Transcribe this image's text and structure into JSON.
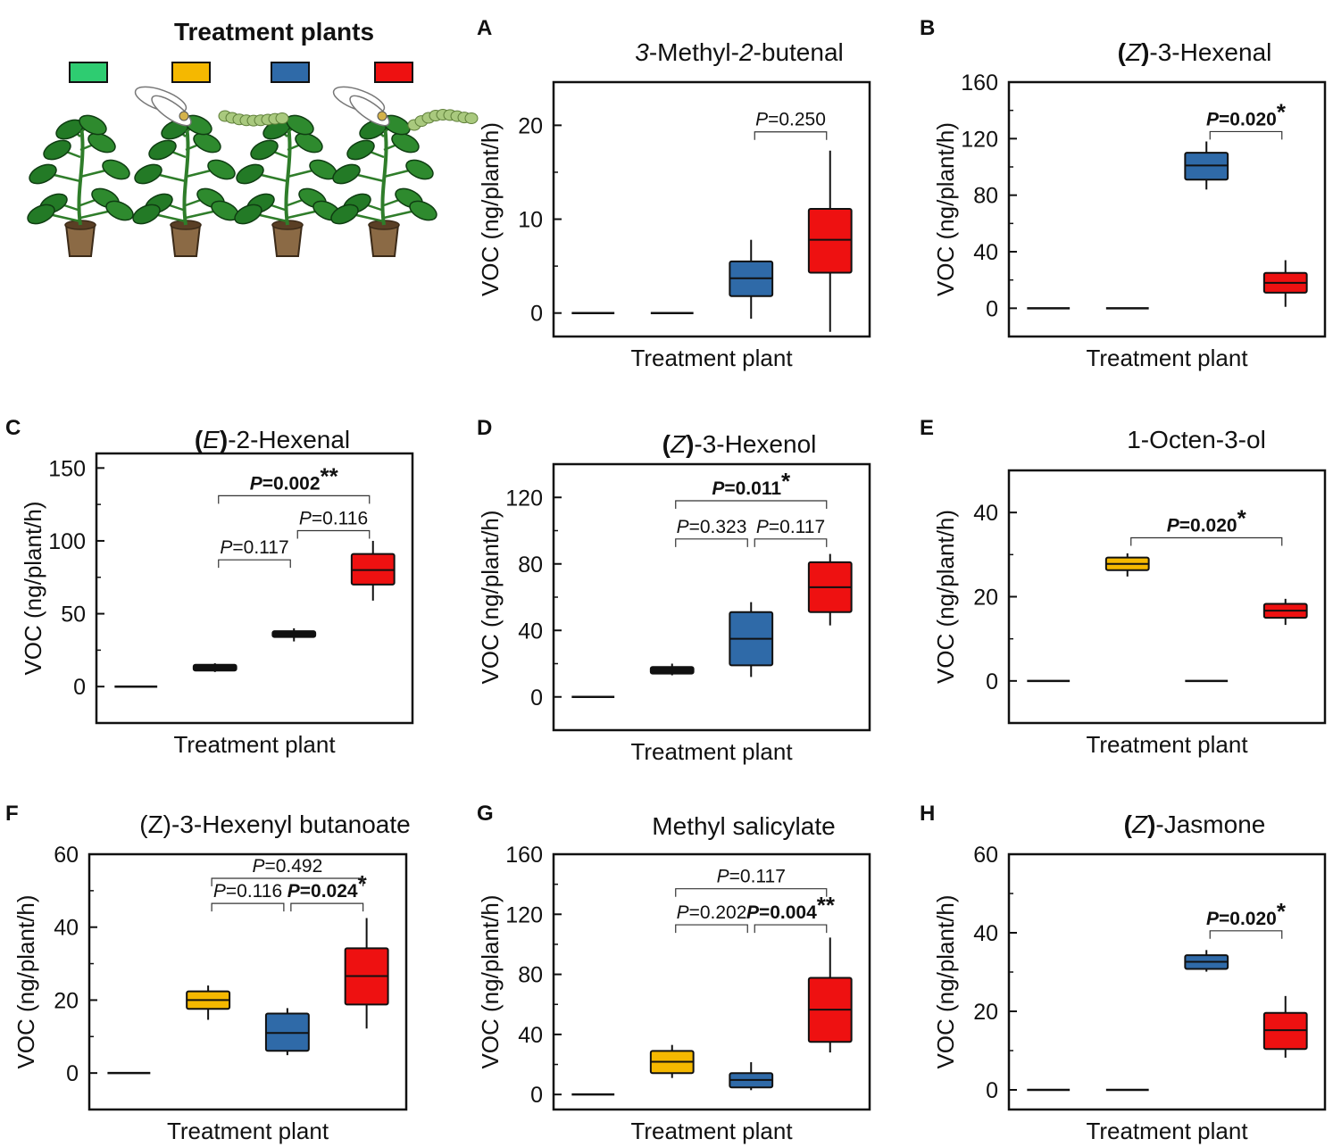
{
  "legend": {
    "title": "Treatment plants",
    "swatches": [
      {
        "color": "#2ecc71"
      },
      {
        "color": "#f5b800"
      },
      {
        "color": "#2f6aa8"
      },
      {
        "color": "#ee1111"
      }
    ]
  },
  "chart_data": [
    {
      "type": "box",
      "panel": "A",
      "title_parts": [
        {
          "t": "3",
          "i": true
        },
        {
          "t": "-Methyl-",
          "i": false
        },
        {
          "t": "2",
          "i": true
        },
        {
          "t": "-butenal",
          "i": false
        }
      ],
      "xlabel": "Treatment plant",
      "ylabel": "VOC (ng/plant/h)",
      "ylim": [
        -2.5,
        24.6
      ],
      "yticks": [
        0,
        10,
        20
      ],
      "minor_step": 5,
      "boxes": [
        {
          "group": 1,
          "flat": true,
          "median": 0
        },
        {
          "group": 2,
          "flat": true,
          "median": 0
        },
        {
          "group": 3,
          "color": "#2f6aa8",
          "q1": 1.8,
          "median": 3.7,
          "q3": 5.5,
          "lo": -0.6,
          "hi": 7.8
        },
        {
          "group": 4,
          "color": "#ee1111",
          "q1": 4.3,
          "median": 7.8,
          "q3": 11.1,
          "lo": -2.0,
          "hi": 17.3
        }
      ],
      "brackets": [
        {
          "from": 3,
          "to": 4,
          "y": 19.3,
          "label": "=0.250",
          "bold": false,
          "stars": ""
        }
      ]
    },
    {
      "type": "box",
      "panel": "B",
      "title_parts": [
        {
          "t": "(",
          "i": false,
          "b": true
        },
        {
          "t": "Z",
          "i": true
        },
        {
          "t": ")",
          "i": false,
          "b": true
        },
        {
          "t": "-3-Hexenal",
          "i": false
        }
      ],
      "xlabel": "Treatment plant",
      "ylabel": "VOC (ng/plant/h)",
      "ylim": [
        -20,
        160
      ],
      "yticks": [
        0,
        40,
        80,
        120,
        160
      ],
      "minor_step": 20,
      "boxes": [
        {
          "group": 1,
          "flat": true,
          "median": 0
        },
        {
          "group": 2,
          "flat": true,
          "median": 0
        },
        {
          "group": 3,
          "color": "#2f6aa8",
          "q1": 91,
          "median": 101,
          "q3": 110,
          "lo": 84,
          "hi": 118
        },
        {
          "group": 4,
          "color": "#ee1111",
          "q1": 11,
          "median": 18,
          "q3": 25,
          "lo": 1,
          "hi": 34
        }
      ],
      "brackets": [
        {
          "from": 3,
          "to": 4,
          "y": 125,
          "label": "=0.020",
          "bold": true,
          "stars": "*"
        }
      ]
    },
    {
      "type": "box",
      "panel": "C",
      "title_parts": [
        {
          "t": "(",
          "i": false,
          "b": true
        },
        {
          "t": "E",
          "i": true
        },
        {
          "t": ")",
          "i": false,
          "b": true
        },
        {
          "t": "-2-Hexenal",
          "i": false
        }
      ],
      "xlabel": "Treatment plant",
      "ylabel": "VOC (ng/plant/h)",
      "ylim": [
        -25,
        160
      ],
      "yticks": [
        0,
        50,
        100,
        150
      ],
      "minor_step": 25,
      "boxes": [
        {
          "group": 1,
          "flat": true,
          "median": 0
        },
        {
          "group": 2,
          "color": "#111111",
          "q1": 11,
          "median": 13,
          "q3": 15,
          "lo": 10,
          "hi": 16
        },
        {
          "group": 3,
          "color": "#111111",
          "q1": 34,
          "median": 36,
          "q3": 38,
          "lo": 31,
          "hi": 40
        },
        {
          "group": 4,
          "color": "#ee1111",
          "q1": 70,
          "median": 80,
          "q3": 91,
          "lo": 59,
          "hi": 100
        }
      ],
      "brackets": [
        {
          "from": 2,
          "to": 3,
          "y": 87,
          "label": "=0.117",
          "bold": false,
          "stars": ""
        },
        {
          "from": 3,
          "to": 4,
          "y": 107,
          "label": "=0.116",
          "bold": false,
          "stars": ""
        },
        {
          "from": 2,
          "to": 4,
          "y": 131,
          "label": "=0.002",
          "bold": true,
          "stars": "**"
        }
      ]
    },
    {
      "type": "box",
      "panel": "D",
      "title_parts": [
        {
          "t": "(",
          "i": false,
          "b": true
        },
        {
          "t": "Z",
          "i": true
        },
        {
          "t": ")",
          "i": false,
          "b": true
        },
        {
          "t": "-3-Hexenol",
          "i": false
        }
      ],
      "xlabel": "Treatment plant",
      "ylabel": "VOC (ng/plant/h)",
      "ylim": [
        -20,
        140
      ],
      "yticks": [
        0,
        40,
        80,
        120
      ],
      "minor_step": 20,
      "boxes": [
        {
          "group": 1,
          "flat": true,
          "median": 0
        },
        {
          "group": 2,
          "color": "#111111",
          "q1": 14,
          "median": 16,
          "q3": 18,
          "lo": 13,
          "hi": 20
        },
        {
          "group": 3,
          "color": "#2f6aa8",
          "q1": 19,
          "median": 35,
          "q3": 51,
          "lo": 12,
          "hi": 57
        },
        {
          "group": 4,
          "color": "#ee1111",
          "q1": 51,
          "median": 66,
          "q3": 81,
          "lo": 43,
          "hi": 86
        }
      ],
      "brackets": [
        {
          "from": 2,
          "to": 3,
          "y": 95,
          "label": "=0.323",
          "bold": false,
          "stars": ""
        },
        {
          "from": 3,
          "to": 4,
          "y": 95,
          "label": "=0.117",
          "bold": false,
          "stars": ""
        },
        {
          "from": 2,
          "to": 4,
          "y": 118,
          "label": "=0.011",
          "bold": true,
          "stars": "*"
        }
      ]
    },
    {
      "type": "box",
      "panel": "E",
      "title_parts": [
        {
          "t": "1-Octen-3-ol",
          "i": false
        }
      ],
      "xlabel": "Treatment plant",
      "ylabel": "VOC (ng/plant/h)",
      "ylim": [
        -10,
        50
      ],
      "yticks": [
        0,
        20,
        40
      ],
      "minor_step": 10,
      "boxes": [
        {
          "group": 1,
          "flat": true,
          "median": 0
        },
        {
          "group": 2,
          "color": "#f5b800",
          "q1": 26.3,
          "median": 27.8,
          "q3": 29.3,
          "lo": 24.8,
          "hi": 30.3
        },
        {
          "group": 3,
          "flat": true,
          "median": 0
        },
        {
          "group": 4,
          "color": "#ee1111",
          "q1": 15.0,
          "median": 16.7,
          "q3": 18.3,
          "lo": 13.3,
          "hi": 19.5
        }
      ],
      "brackets": [
        {
          "from": 2,
          "to": 4,
          "y": 34,
          "label": "=0.020",
          "bold": true,
          "stars": "*"
        }
      ]
    },
    {
      "type": "box",
      "panel": "F",
      "title_parts": [
        {
          "t": "(Z)-3-Hexenyl butanoate",
          "i": false
        }
      ],
      "xlabel": "Treatment plant",
      "ylabel": "VOC (ng/plant/h)",
      "ylim": [
        -10,
        60
      ],
      "yticks": [
        0,
        20,
        40,
        60
      ],
      "minor_step": 10,
      "boxes": [
        {
          "group": 1,
          "flat": true,
          "median": 0
        },
        {
          "group": 2,
          "color": "#f5b800",
          "q1": 17.6,
          "median": 20.0,
          "q3": 22.4,
          "lo": 14.6,
          "hi": 24.0
        },
        {
          "group": 3,
          "color": "#2f6aa8",
          "q1": 6.1,
          "median": 11.0,
          "q3": 16.3,
          "lo": 4.9,
          "hi": 17.8
        },
        {
          "group": 4,
          "color": "#ee1111",
          "q1": 18.8,
          "median": 26.6,
          "q3": 34.2,
          "lo": 12.2,
          "hi": 42.5
        }
      ],
      "brackets": [
        {
          "from": 2,
          "to": 3,
          "y": 46.5,
          "label": "=0.116",
          "bold": false,
          "stars": ""
        },
        {
          "from": 3,
          "to": 4,
          "y": 46.5,
          "label": "=0.024",
          "bold": true,
          "stars": "*"
        },
        {
          "from": 2,
          "to": 4,
          "y": 53.4,
          "label": "=0.492",
          "bold": false,
          "stars": ""
        }
      ]
    },
    {
      "type": "box",
      "panel": "G",
      "title_parts": [
        {
          "t": "Methyl salicylate",
          "i": false
        }
      ],
      "xlabel": "Treatment plant",
      "ylabel": "VOC (ng/plant/h)",
      "ylim": [
        -10,
        160
      ],
      "yticks": [
        0,
        40,
        80,
        120,
        160
      ],
      "minor_step": 20,
      "boxes": [
        {
          "group": 1,
          "flat": true,
          "median": 0
        },
        {
          "group": 2,
          "color": "#f5b800",
          "q1": 14.2,
          "median": 21.8,
          "q3": 29.0,
          "lo": 11.0,
          "hi": 33.0
        },
        {
          "group": 3,
          "color": "#2f6aa8",
          "q1": 4.7,
          "median": 9.7,
          "q3": 14.2,
          "lo": 2.9,
          "hi": 21.5
        },
        {
          "group": 4,
          "color": "#ee1111",
          "q1": 35.0,
          "median": 56.5,
          "q3": 77.7,
          "lo": 28.0,
          "hi": 104.5
        }
      ],
      "brackets": [
        {
          "from": 2,
          "to": 3,
          "y": 113,
          "label": "=0.202",
          "bold": false,
          "stars": ""
        },
        {
          "from": 3,
          "to": 4,
          "y": 113,
          "label": "=0.004",
          "bold": true,
          "stars": "**"
        },
        {
          "from": 2,
          "to": 4,
          "y": 137,
          "label": "=0.117",
          "bold": false,
          "stars": ""
        }
      ]
    },
    {
      "type": "box",
      "panel": "H",
      "title_parts": [
        {
          "t": "(",
          "i": false,
          "b": true
        },
        {
          "t": "Z",
          "i": true
        },
        {
          "t": ")",
          "i": false,
          "b": true
        },
        {
          "t": "-Jasmone",
          "i": false
        }
      ],
      "xlabel": "Treatment plant",
      "ylabel": "VOC (ng/plant/h)",
      "ylim": [
        -5,
        60
      ],
      "yticks": [
        0,
        20,
        40,
        60
      ],
      "minor_step": 10,
      "boxes": [
        {
          "group": 1,
          "flat": true,
          "median": 0
        },
        {
          "group": 2,
          "flat": true,
          "median": 0
        },
        {
          "group": 3,
          "color": "#2f6aa8",
          "q1": 30.8,
          "median": 32.6,
          "q3": 34.3,
          "lo": 30.1,
          "hi": 35.6
        },
        {
          "group": 4,
          "color": "#ee1111",
          "q1": 10.4,
          "median": 15.2,
          "q3": 19.6,
          "lo": 8.2,
          "hi": 23.9
        }
      ],
      "brackets": [
        {
          "from": 3,
          "to": 4,
          "y": 40.5,
          "label": "=0.020",
          "bold": true,
          "stars": "*"
        }
      ]
    }
  ]
}
